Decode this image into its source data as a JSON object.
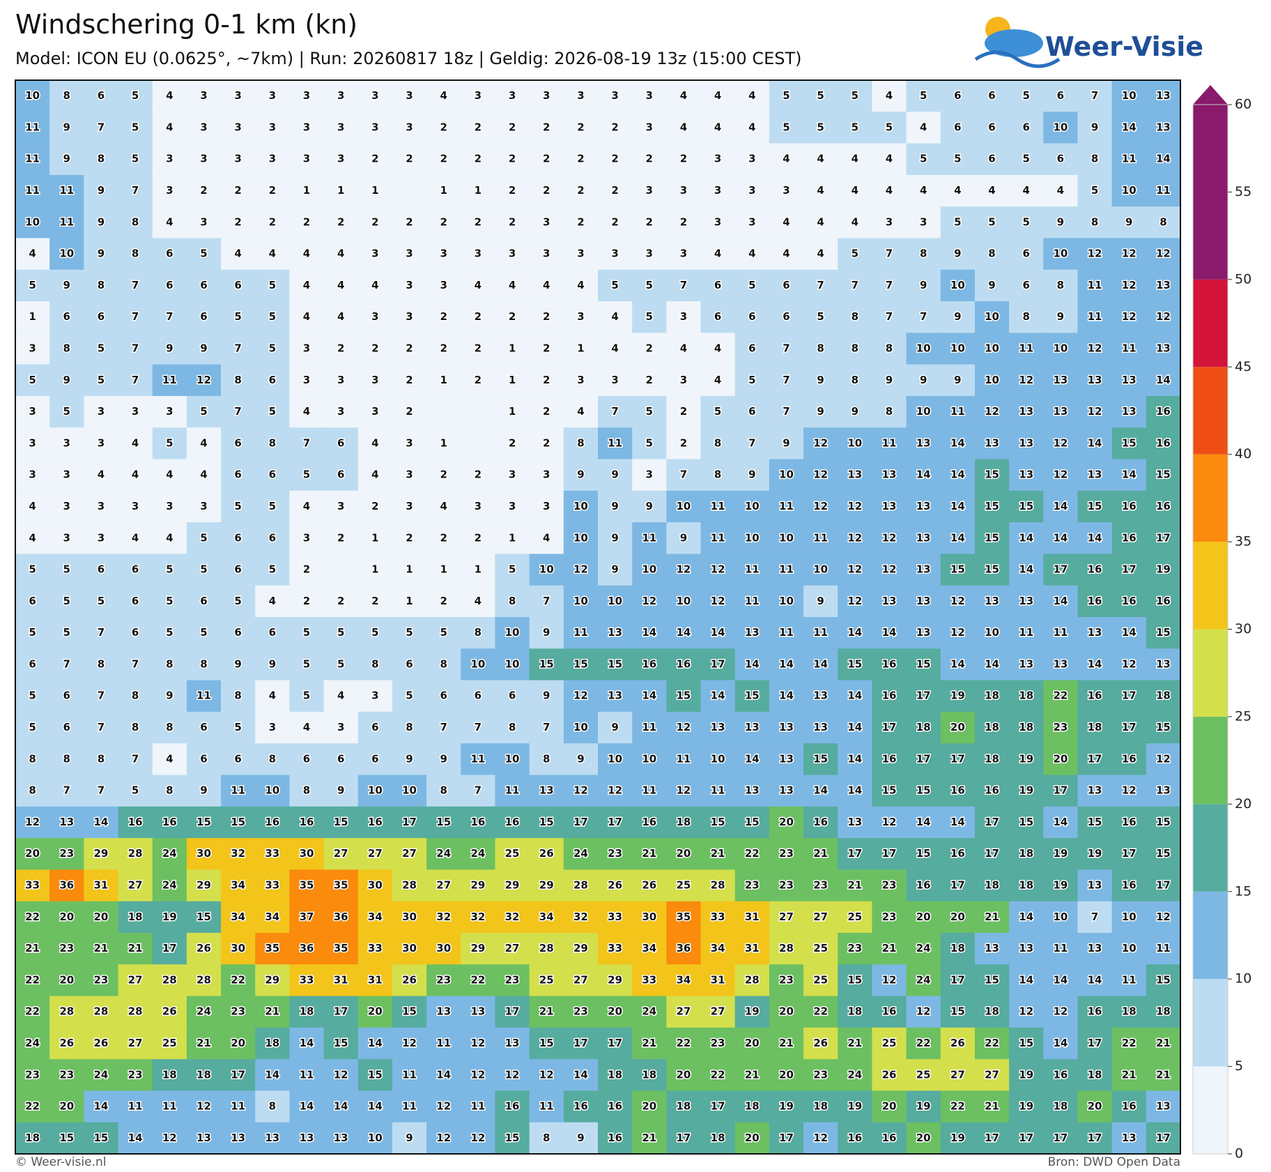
{
  "header": {
    "title": "Windschering 0-1 km (kn)",
    "subtitle": "Model: ICON EU (0.0625°, ~7km)  |  Run: 20260817 18z  |  Geldig: 2026-08-19 13z (15:00 CEST)"
  },
  "logo": {
    "text": "Weer-Visie"
  },
  "grid": {
    "values": [
      [
        10,
        8,
        6,
        5,
        4,
        3,
        3,
        3,
        3,
        3,
        3,
        3,
        4,
        3,
        3,
        3,
        3,
        3,
        3,
        4,
        4,
        4,
        5,
        5,
        5,
        4,
        5,
        6,
        6,
        5,
        6,
        7,
        10,
        13
      ],
      [
        11,
        9,
        7,
        5,
        4,
        3,
        3,
        3,
        3,
        3,
        3,
        3,
        2,
        2,
        2,
        2,
        2,
        2,
        3,
        4,
        4,
        4,
        5,
        5,
        5,
        5,
        4,
        6,
        6,
        6,
        10,
        9,
        14,
        13
      ],
      [
        11,
        9,
        8,
        5,
        3,
        3,
        3,
        3,
        3,
        3,
        2,
        2,
        2,
        2,
        2,
        2,
        2,
        2,
        2,
        2,
        3,
        3,
        4,
        4,
        4,
        4,
        5,
        5,
        6,
        5,
        6,
        8,
        11,
        14
      ],
      [
        11,
        11,
        9,
        7,
        3,
        2,
        2,
        2,
        1,
        1,
        1,
        null,
        1,
        1,
        2,
        2,
        2,
        2,
        3,
        3,
        3,
        3,
        3,
        4,
        4,
        4,
        4,
        4,
        4,
        4,
        4,
        5,
        10,
        11
      ],
      [
        10,
        11,
        9,
        8,
        4,
        3,
        2,
        2,
        2,
        2,
        2,
        2,
        2,
        2,
        2,
        3,
        2,
        2,
        2,
        2,
        3,
        3,
        4,
        4,
        4,
        3,
        3,
        5,
        5,
        5,
        9,
        8,
        9,
        8
      ],
      [
        4,
        10,
        9,
        8,
        6,
        5,
        4,
        4,
        4,
        4,
        3,
        3,
        3,
        3,
        3,
        3,
        3,
        3,
        3,
        3,
        4,
        4,
        4,
        4,
        5,
        7,
        8,
        9,
        8,
        6,
        10,
        12,
        12,
        12
      ],
      [
        5,
        9,
        8,
        7,
        6,
        6,
        6,
        5,
        4,
        4,
        4,
        3,
        3,
        4,
        4,
        4,
        4,
        5,
        5,
        7,
        6,
        5,
        6,
        7,
        7,
        7,
        9,
        10,
        9,
        6,
        8,
        11,
        12,
        13
      ],
      [
        1,
        6,
        6,
        7,
        7,
        6,
        5,
        5,
        4,
        4,
        3,
        3,
        2,
        2,
        2,
        2,
        3,
        4,
        5,
        3,
        6,
        6,
        6,
        5,
        8,
        7,
        7,
        9,
        10,
        8,
        9,
        11,
        12,
        12
      ],
      [
        3,
        8,
        5,
        7,
        9,
        9,
        7,
        5,
        3,
        2,
        2,
        2,
        2,
        2,
        1,
        2,
        1,
        4,
        2,
        4,
        4,
        6,
        7,
        8,
        8,
        8,
        10,
        10,
        10,
        11,
        10,
        12,
        11,
        13
      ],
      [
        5,
        9,
        5,
        7,
        11,
        12,
        8,
        6,
        3,
        3,
        3,
        2,
        1,
        2,
        1,
        2,
        3,
        3,
        2,
        3,
        4,
        5,
        7,
        9,
        8,
        9,
        9,
        9,
        10,
        12,
        13,
        13,
        13,
        14
      ],
      [
        3,
        5,
        3,
        3,
        3,
        5,
        7,
        5,
        4,
        3,
        3,
        2,
        null,
        null,
        1,
        2,
        4,
        7,
        5,
        2,
        5,
        6,
        7,
        9,
        9,
        8,
        10,
        11,
        12,
        13,
        13,
        12,
        13,
        16
      ],
      [
        3,
        3,
        3,
        4,
        5,
        4,
        6,
        8,
        7,
        6,
        4,
        3,
        1,
        null,
        2,
        2,
        8,
        11,
        5,
        2,
        8,
        7,
        9,
        12,
        10,
        11,
        13,
        14,
        13,
        13,
        12,
        14,
        15,
        16
      ],
      [
        3,
        3,
        4,
        4,
        4,
        4,
        6,
        6,
        5,
        6,
        4,
        3,
        2,
        2,
        3,
        3,
        9,
        9,
        3,
        7,
        8,
        9,
        10,
        12,
        13,
        13,
        14,
        14,
        15,
        13,
        12,
        13,
        14,
        15
      ],
      [
        4,
        3,
        3,
        3,
        3,
        3,
        5,
        5,
        4,
        3,
        2,
        3,
        4,
        3,
        3,
        3,
        10,
        9,
        9,
        10,
        11,
        10,
        11,
        12,
        12,
        13,
        13,
        14,
        15,
        15,
        14,
        15,
        16,
        16
      ],
      [
        4,
        3,
        3,
        4,
        4,
        5,
        6,
        6,
        3,
        2,
        1,
        2,
        2,
        2,
        1,
        4,
        10,
        9,
        11,
        9,
        11,
        10,
        10,
        11,
        12,
        12,
        13,
        14,
        15,
        14,
        14,
        14,
        16,
        17
      ],
      [
        5,
        5,
        6,
        6,
        5,
        5,
        6,
        5,
        2,
        null,
        1,
        1,
        1,
        1,
        5,
        10,
        12,
        9,
        10,
        12,
        12,
        11,
        11,
        10,
        12,
        12,
        13,
        15,
        15,
        14,
        17,
        16,
        17,
        19
      ],
      [
        6,
        5,
        5,
        6,
        5,
        6,
        5,
        4,
        2,
        2,
        2,
        1,
        2,
        4,
        8,
        7,
        10,
        10,
        12,
        10,
        12,
        11,
        10,
        9,
        12,
        13,
        13,
        12,
        13,
        13,
        14,
        16,
        16,
        16
      ],
      [
        5,
        5,
        7,
        6,
        5,
        5,
        6,
        6,
        5,
        5,
        5,
        5,
        5,
        8,
        10,
        9,
        11,
        13,
        14,
        14,
        14,
        13,
        11,
        11,
        14,
        14,
        13,
        12,
        10,
        11,
        11,
        13,
        14,
        15
      ],
      [
        6,
        7,
        8,
        7,
        8,
        8,
        9,
        9,
        5,
        5,
        8,
        6,
        8,
        10,
        10,
        15,
        15,
        15,
        16,
        16,
        17,
        14,
        14,
        14,
        15,
        16,
        15,
        14,
        14,
        13,
        13,
        14,
        12,
        13
      ],
      [
        5,
        6,
        7,
        8,
        9,
        11,
        8,
        4,
        5,
        4,
        3,
        5,
        6,
        6,
        6,
        9,
        12,
        13,
        14,
        15,
        14,
        15,
        14,
        13,
        14,
        16,
        17,
        19,
        18,
        18,
        22,
        16,
        17,
        18
      ],
      [
        5,
        6,
        7,
        8,
        8,
        6,
        5,
        3,
        4,
        3,
        6,
        8,
        7,
        7,
        8,
        7,
        10,
        9,
        11,
        12,
        13,
        13,
        13,
        13,
        14,
        17,
        18,
        20,
        18,
        18,
        23,
        18,
        17,
        15
      ],
      [
        8,
        8,
        8,
        7,
        4,
        6,
        6,
        8,
        6,
        6,
        6,
        9,
        9,
        11,
        10,
        8,
        9,
        10,
        10,
        11,
        10,
        14,
        13,
        15,
        14,
        16,
        17,
        17,
        18,
        19,
        20,
        17,
        16,
        12
      ],
      [
        8,
        7,
        7,
        5,
        8,
        9,
        11,
        10,
        8,
        9,
        10,
        10,
        8,
        7,
        11,
        13,
        12,
        12,
        11,
        12,
        11,
        13,
        13,
        14,
        14,
        15,
        15,
        16,
        16,
        19,
        17,
        13,
        12,
        13
      ],
      [
        12,
        13,
        14,
        16,
        16,
        15,
        15,
        16,
        16,
        15,
        16,
        17,
        15,
        16,
        16,
        15,
        17,
        17,
        16,
        18,
        15,
        15,
        20,
        16,
        13,
        12,
        14,
        14,
        17,
        15,
        14,
        15,
        16,
        15
      ],
      [
        20,
        23,
        29,
        28,
        24,
        30,
        32,
        33,
        30,
        27,
        27,
        27,
        24,
        24,
        25,
        26,
        24,
        23,
        21,
        20,
        21,
        22,
        23,
        21,
        17,
        17,
        15,
        16,
        17,
        18,
        19,
        19,
        17,
        15
      ],
      [
        33,
        36,
        31,
        27,
        24,
        29,
        34,
        33,
        35,
        35,
        30,
        28,
        27,
        29,
        29,
        29,
        28,
        26,
        26,
        25,
        28,
        23,
        23,
        23,
        21,
        23,
        16,
        17,
        18,
        18,
        19,
        13,
        16,
        17
      ],
      [
        22,
        20,
        20,
        18,
        19,
        15,
        34,
        34,
        37,
        36,
        34,
        30,
        32,
        32,
        32,
        34,
        32,
        33,
        30,
        35,
        33,
        31,
        27,
        27,
        25,
        23,
        20,
        20,
        21,
        14,
        10,
        7,
        10,
        12
      ],
      [
        21,
        23,
        21,
        21,
        17,
        26,
        30,
        35,
        36,
        35,
        33,
        30,
        30,
        29,
        27,
        28,
        29,
        33,
        34,
        36,
        34,
        31,
        28,
        25,
        23,
        21,
        24,
        18,
        13,
        13,
        11,
        13,
        10,
        11
      ],
      [
        22,
        20,
        23,
        27,
        28,
        28,
        22,
        29,
        33,
        31,
        31,
        26,
        23,
        22,
        23,
        25,
        27,
        29,
        33,
        34,
        31,
        28,
        23,
        25,
        15,
        12,
        24,
        17,
        15,
        14,
        14,
        14,
        11,
        15
      ],
      [
        22,
        28,
        28,
        28,
        26,
        24,
        23,
        21,
        18,
        17,
        20,
        15,
        13,
        13,
        17,
        21,
        23,
        20,
        24,
        27,
        27,
        19,
        20,
        22,
        18,
        16,
        12,
        15,
        18,
        12,
        12,
        16,
        18,
        18
      ],
      [
        24,
        26,
        26,
        27,
        25,
        21,
        20,
        18,
        14,
        15,
        14,
        12,
        11,
        12,
        13,
        15,
        17,
        17,
        21,
        22,
        23,
        20,
        21,
        26,
        21,
        25,
        22,
        26,
        22,
        15,
        14,
        17,
        22,
        21
      ],
      [
        23,
        23,
        24,
        23,
        18,
        18,
        17,
        14,
        11,
        12,
        15,
        11,
        14,
        12,
        12,
        12,
        14,
        18,
        18,
        20,
        22,
        21,
        20,
        23,
        24,
        26,
        25,
        27,
        27,
        19,
        16,
        18,
        21,
        21
      ],
      [
        22,
        20,
        14,
        11,
        11,
        12,
        11,
        8,
        14,
        14,
        14,
        11,
        12,
        11,
        16,
        11,
        16,
        16,
        20,
        18,
        17,
        18,
        19,
        18,
        19,
        20,
        19,
        22,
        21,
        19,
        18,
        20,
        16,
        13
      ],
      [
        18,
        15,
        15,
        14,
        12,
        13,
        13,
        13,
        13,
        13,
        10,
        9,
        12,
        12,
        15,
        8,
        9,
        16,
        21,
        17,
        18,
        20,
        17,
        12,
        16,
        16,
        20,
        19,
        17,
        17,
        17,
        17,
        13,
        17
      ]
    ]
  },
  "colorbar": {
    "levels": [
      0,
      5,
      10,
      15,
      20,
      25,
      30,
      35,
      40,
      45,
      50,
      60
    ],
    "colors": [
      "#eff5fa",
      "#bddcf1",
      "#7db8e4",
      "#56ac9f",
      "#6cc061",
      "#d4df4c",
      "#f3c41a",
      "#fa8b0c",
      "#ee4e15",
      "#d3133a",
      "#8a1a6b"
    ],
    "ticks": [
      0,
      5,
      10,
      15,
      20,
      25,
      30,
      35,
      40,
      45,
      50,
      55,
      60
    ]
  },
  "footer": {
    "credit": "© Weer-visie.nl",
    "source": "Bron: DWD Open Data"
  }
}
